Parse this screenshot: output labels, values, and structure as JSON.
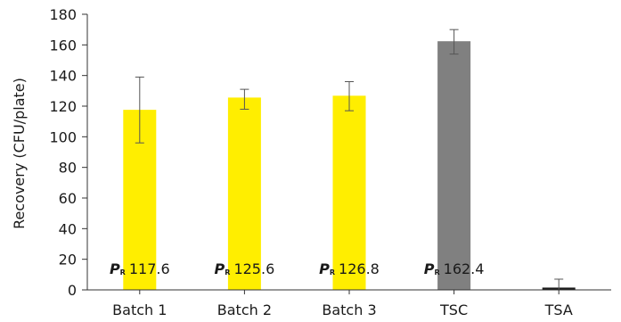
{
  "chart_data": {
    "type": "bar",
    "title": "",
    "xlabel": "",
    "ylabel": "Recovery (CFU/plate)",
    "ylim": [
      0,
      180
    ],
    "yticks": [
      0,
      20,
      40,
      60,
      80,
      100,
      120,
      140,
      160,
      180
    ],
    "grid": false,
    "categories": [
      "Batch 1",
      "Batch 2",
      "Batch 3",
      "TSC",
      "TSA"
    ],
    "values": [
      117.6,
      125.6,
      126.8,
      162.4,
      1.5
    ],
    "error_low": [
      96,
      118,
      117,
      154,
      0
    ],
    "error_high": [
      139,
      131,
      136,
      170,
      7
    ],
    "colors": [
      "#ffee00",
      "#ffee00",
      "#ffee00",
      "#808080",
      "#1a1a1a"
    ],
    "annotations": [
      {
        "symbol": "P",
        "subscript": "R",
        "value": "117.6"
      },
      {
        "symbol": "P",
        "subscript": "R",
        "value": "125.6"
      },
      {
        "symbol": "P",
        "subscript": "R",
        "value": "126.8"
      },
      {
        "symbol": "P",
        "subscript": "R",
        "value": "162.4"
      }
    ]
  }
}
